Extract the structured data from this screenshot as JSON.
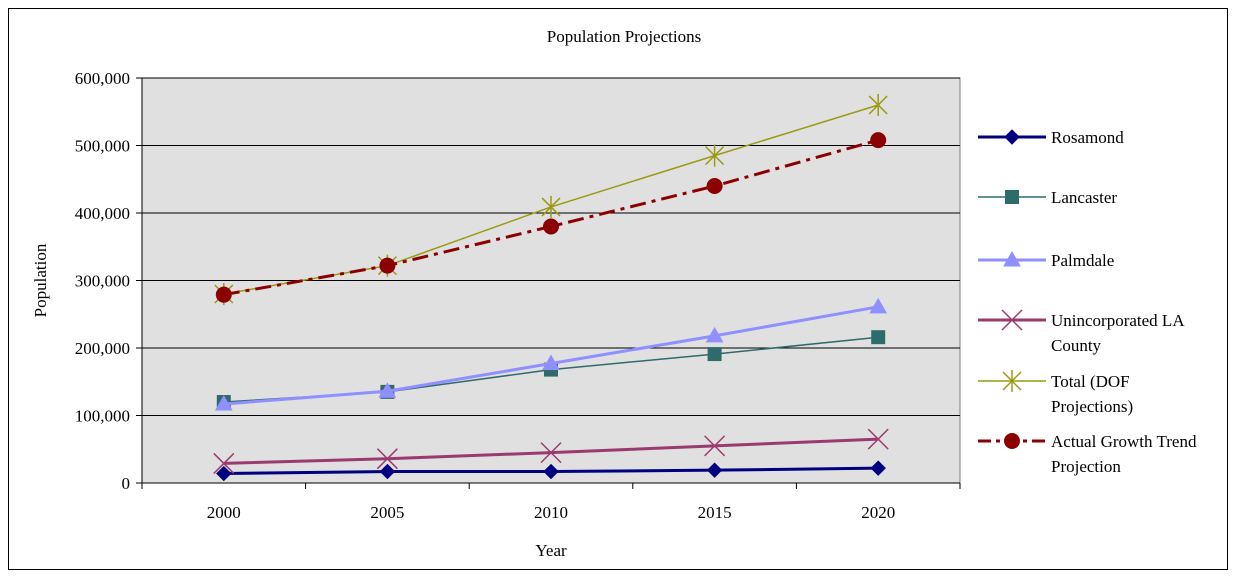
{
  "chart_data": {
    "type": "line",
    "title": "Population Projections",
    "xlabel": "Year",
    "ylabel": "Population",
    "categories": [
      "2000",
      "2005",
      "2010",
      "2015",
      "2020"
    ],
    "y_ticks": [
      "0",
      "100,000",
      "200,000",
      "300,000",
      "400,000",
      "500,000",
      "600,000"
    ],
    "ylim": [
      0,
      600000
    ],
    "grid": "horizontal",
    "legend_position": "right",
    "plot_background": "#e0e0e0",
    "series": [
      {
        "name": "Rosamond",
        "label_lines": [
          "Rosamond"
        ],
        "color": "#000080",
        "marker": "diamond",
        "dash": "solid",
        "width": 3,
        "values": [
          14000,
          17000,
          17000,
          19000,
          22000
        ]
      },
      {
        "name": "Lancaster",
        "label_lines": [
          "Lancaster"
        ],
        "color": "#2e6b6b",
        "marker": "square",
        "dash": "solid",
        "width": 1.5,
        "values": [
          120000,
          135000,
          168000,
          191000,
          216000
        ]
      },
      {
        "name": "Palmdale",
        "label_lines": [
          "Palmdale"
        ],
        "color": "#8f8fff",
        "marker": "triangle",
        "dash": "solid",
        "width": 3,
        "values": [
          117000,
          136000,
          177000,
          218000,
          261000
        ]
      },
      {
        "name": "Unincorporated LA County",
        "label_lines": [
          "Unincorporated LA",
          "County"
        ],
        "color": "#9b3a6e",
        "marker": "x",
        "dash": "solid",
        "width": 3,
        "values": [
          29000,
          36000,
          45000,
          55000,
          65000
        ]
      },
      {
        "name": "Total (DOF Projections)",
        "label_lines": [
          "Total (DOF",
          "Projections)"
        ],
        "color": "#9a9a10",
        "marker": "star",
        "dash": "solid",
        "width": 1.5,
        "values": [
          280000,
          322000,
          409000,
          485000,
          560000
        ]
      },
      {
        "name": "Actual Growth Trend Projection",
        "label_lines": [
          "Actual Growth Trend",
          "Projection"
        ],
        "color": "#8b0000",
        "marker": "circle",
        "dash": "dashdot",
        "width": 3,
        "values": [
          279000,
          322000,
          380000,
          440000,
          508000
        ]
      }
    ]
  }
}
